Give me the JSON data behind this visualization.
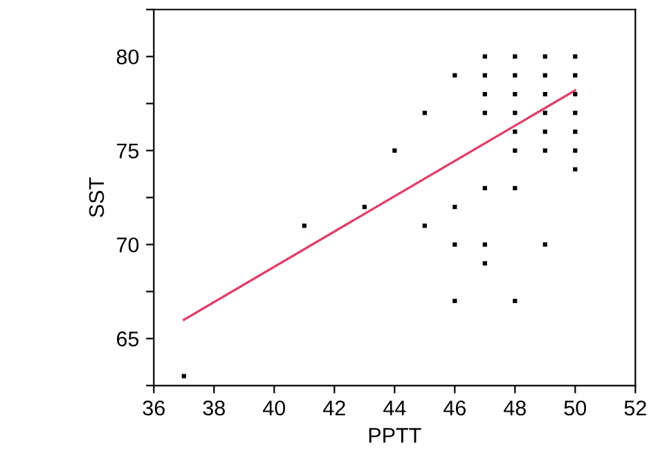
{
  "chart_data": {
    "type": "scatter",
    "xlabel": "PPTT",
    "ylabel": "SST",
    "xlim": [
      36,
      52
    ],
    "ylim": [
      62.5,
      82.5
    ],
    "xticks": [
      36,
      38,
      40,
      42,
      44,
      46,
      48,
      50,
      52
    ],
    "yticks": [
      {
        "value": 62.5,
        "label": null
      },
      65,
      {
        "value": 67.5,
        "label": null
      },
      70,
      {
        "value": 72.5,
        "label": null
      },
      75,
      {
        "value": 77.5,
        "label": null
      },
      80,
      {
        "value": 82.5,
        "label": null
      }
    ],
    "grid": false,
    "legend": false,
    "series": [
      {
        "color": "#000000",
        "marker": "square",
        "x": [
          37,
          41,
          43,
          44,
          45,
          45,
          46,
          46,
          46,
          46,
          47,
          47,
          47,
          47,
          47,
          47,
          47,
          48,
          48,
          48,
          48,
          48,
          48,
          48,
          48,
          49,
          49,
          49,
          49,
          49,
          49,
          49,
          50,
          50,
          50,
          50,
          50,
          50,
          50
        ],
        "values": [
          63,
          71,
          72,
          75,
          77,
          71,
          79,
          72,
          70,
          67,
          80,
          79,
          78,
          77,
          73,
          70,
          69,
          80,
          79,
          78,
          77,
          76,
          75,
          73,
          67,
          80,
          79,
          78,
          77,
          76,
          75,
          70,
          80,
          79,
          78,
          77,
          76,
          75,
          74
        ]
      },
      {
        "type": "line",
        "color": "#e0406a",
        "x": [
          37,
          50
        ],
        "values": [
          66.0,
          78.2
        ],
        "line_style": "solid",
        "marker": "none"
      }
    ]
  }
}
